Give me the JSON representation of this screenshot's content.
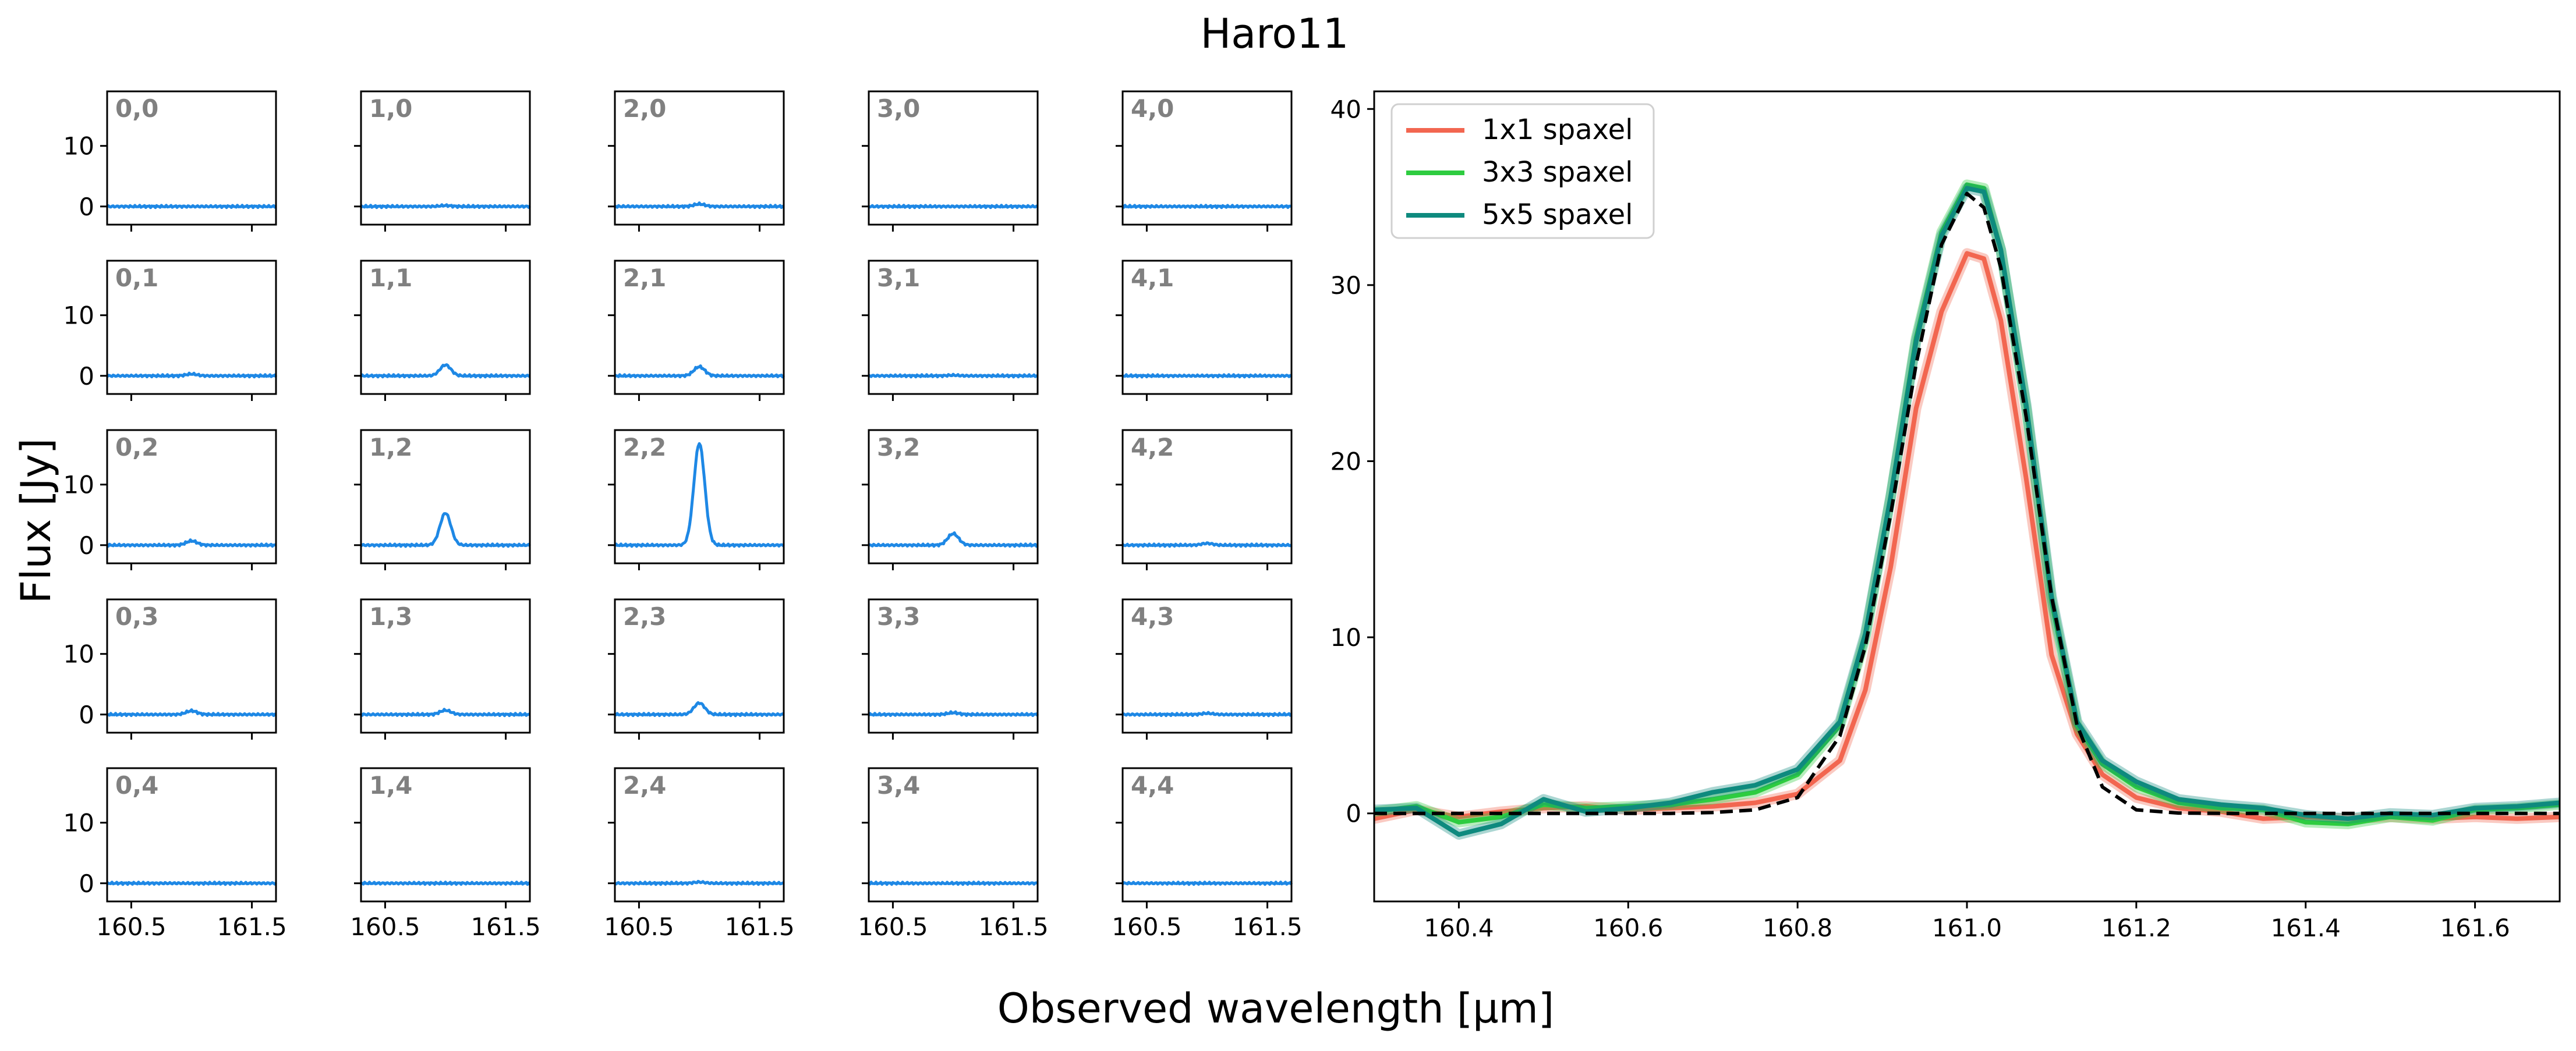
{
  "figure": {
    "title": "Haro11",
    "xlabel": "Observed wavelength [µm]",
    "ylabel": "Flux [Jy]"
  },
  "chart_data": [
    {
      "type": "line",
      "name": "spaxel-grid",
      "description": "5x5 grid of single-spaxel spectra",
      "xlim": [
        160.3,
        161.7
      ],
      "ylim": [
        -3,
        19
      ],
      "xticks": [
        160.5,
        161.5
      ],
      "yticks": [
        0,
        10
      ],
      "line_color": "#1e88e5",
      "label_color": "#808080",
      "line_center": 161.0,
      "line_sigma": 0.045,
      "panels": [
        {
          "label": "0,0",
          "peak": 0.0
        },
        {
          "label": "1,0",
          "peak": 0.15
        },
        {
          "label": "2,0",
          "peak": 0.4
        },
        {
          "label": "3,0",
          "peak": 0.0
        },
        {
          "label": "4,0",
          "peak": 0.0
        },
        {
          "label": "0,1",
          "peak": 0.3
        },
        {
          "label": "1,1",
          "peak": 1.8
        },
        {
          "label": "2,1",
          "peak": 1.5
        },
        {
          "label": "3,1",
          "peak": 0.1
        },
        {
          "label": "4,1",
          "peak": 0.0
        },
        {
          "label": "0,2",
          "peak": 0.7
        },
        {
          "label": "1,2",
          "peak": 5.3
        },
        {
          "label": "2,2",
          "peak": 16.8
        },
        {
          "label": "3,2",
          "peak": 1.9
        },
        {
          "label": "4,2",
          "peak": 0.3
        },
        {
          "label": "0,3",
          "peak": 0.6
        },
        {
          "label": "1,3",
          "peak": 0.7
        },
        {
          "label": "2,3",
          "peak": 1.9
        },
        {
          "label": "3,3",
          "peak": 0.3
        },
        {
          "label": "4,3",
          "peak": 0.2
        },
        {
          "label": "0,4",
          "peak": 0.0
        },
        {
          "label": "1,4",
          "peak": 0.0
        },
        {
          "label": "2,4",
          "peak": 0.2
        },
        {
          "label": "3,4",
          "peak": 0.0
        },
        {
          "label": "4,4",
          "peak": 0.0
        }
      ]
    },
    {
      "type": "line",
      "name": "aperture-spectra",
      "xlim": [
        160.3,
        161.7
      ],
      "ylim": [
        -5,
        41
      ],
      "xticks": [
        160.4,
        160.6,
        160.8,
        161.0,
        161.2,
        161.4,
        161.6
      ],
      "xtick_labels": [
        "160.4",
        "160.6",
        "160.8",
        "161.0",
        "161.2",
        "161.4",
        "161.6"
      ],
      "yticks": [
        0,
        10,
        20,
        30,
        40
      ],
      "legend_position": "top-left",
      "series": [
        {
          "name": "1x1 spaxel",
          "color": "#f26650",
          "x": [
            160.3,
            160.35,
            160.4,
            160.45,
            160.5,
            160.55,
            160.6,
            160.65,
            160.7,
            160.75,
            160.8,
            160.85,
            160.88,
            160.91,
            160.94,
            160.97,
            161.0,
            161.02,
            161.04,
            161.07,
            161.1,
            161.13,
            161.16,
            161.2,
            161.25,
            161.3,
            161.35,
            161.4,
            161.45,
            161.5,
            161.55,
            161.6,
            161.65,
            161.7
          ],
          "y": [
            -0.3,
            0.2,
            -0.2,
            0.1,
            0.3,
            0.4,
            0.2,
            0.3,
            0.4,
            0.6,
            1.1,
            3.0,
            7.0,
            14.0,
            23.0,
            28.5,
            31.8,
            31.5,
            28.0,
            19.0,
            9.0,
            4.5,
            2.2,
            0.9,
            0.3,
            0.1,
            -0.3,
            -0.2,
            -0.3,
            -0.2,
            -0.3,
            -0.2,
            -0.3,
            -0.2
          ]
        },
        {
          "name": "3x3 spaxel",
          "color": "#2ecc40",
          "x": [
            160.3,
            160.35,
            160.4,
            160.45,
            160.5,
            160.55,
            160.6,
            160.65,
            160.7,
            160.75,
            160.8,
            160.85,
            160.88,
            160.91,
            160.94,
            160.97,
            161.0,
            161.02,
            161.04,
            161.07,
            161.1,
            161.13,
            161.16,
            161.2,
            161.25,
            161.3,
            161.35,
            161.4,
            161.45,
            161.5,
            161.55,
            161.6,
            161.65,
            161.7
          ],
          "y": [
            0.1,
            0.4,
            -0.5,
            -0.2,
            0.5,
            0.3,
            0.4,
            0.5,
            0.8,
            1.2,
            2.2,
            5.0,
            10.0,
            18.0,
            27.0,
            33.0,
            35.7,
            35.5,
            32.0,
            23.0,
            12.0,
            5.0,
            2.8,
            1.5,
            0.6,
            0.3,
            0.2,
            -0.5,
            -0.6,
            -0.2,
            -0.4,
            0.2,
            0.3,
            0.5
          ]
        },
        {
          "name": "5x5 spaxel",
          "color": "#0e8a7e",
          "x": [
            160.3,
            160.35,
            160.4,
            160.45,
            160.5,
            160.55,
            160.6,
            160.65,
            160.7,
            160.75,
            160.8,
            160.85,
            160.88,
            160.91,
            160.94,
            160.97,
            161.0,
            161.02,
            161.04,
            161.07,
            161.1,
            161.13,
            161.16,
            161.2,
            161.25,
            161.3,
            161.35,
            161.4,
            161.45,
            161.5,
            161.55,
            161.6,
            161.65,
            161.7
          ],
          "y": [
            0.2,
            0.3,
            -1.2,
            -0.6,
            0.8,
            0.1,
            0.3,
            0.6,
            1.2,
            1.6,
            2.5,
            5.2,
            10.2,
            18.0,
            26.8,
            32.8,
            35.5,
            35.3,
            32.0,
            23.2,
            12.3,
            5.2,
            3.0,
            1.8,
            0.8,
            0.5,
            0.3,
            -0.1,
            -0.3,
            0.0,
            -0.1,
            0.3,
            0.4,
            0.6
          ]
        },
        {
          "name": "gaussian fit",
          "color": "#000000",
          "dashed": true,
          "in_legend": false,
          "x": [
            160.3,
            160.35,
            160.4,
            160.45,
            160.5,
            160.55,
            160.6,
            160.65,
            160.7,
            160.75,
            160.8,
            160.85,
            160.88,
            160.91,
            160.94,
            160.97,
            161.0,
            161.02,
            161.04,
            161.07,
            161.1,
            161.13,
            161.16,
            161.2,
            161.25,
            161.3,
            161.35,
            161.4,
            161.45,
            161.5,
            161.55,
            161.6,
            161.65,
            161.7
          ],
          "y": [
            0,
            0,
            0,
            0,
            0,
            0,
            0,
            0,
            0.05,
            0.2,
            0.9,
            4.4,
            9.5,
            17.0,
            25.5,
            32.3,
            35.2,
            34.4,
            31.0,
            22.5,
            12.3,
            5.0,
            1.5,
            0.2,
            0.02,
            0,
            0,
            0,
            0,
            0,
            0,
            0,
            0,
            0
          ]
        }
      ]
    }
  ]
}
